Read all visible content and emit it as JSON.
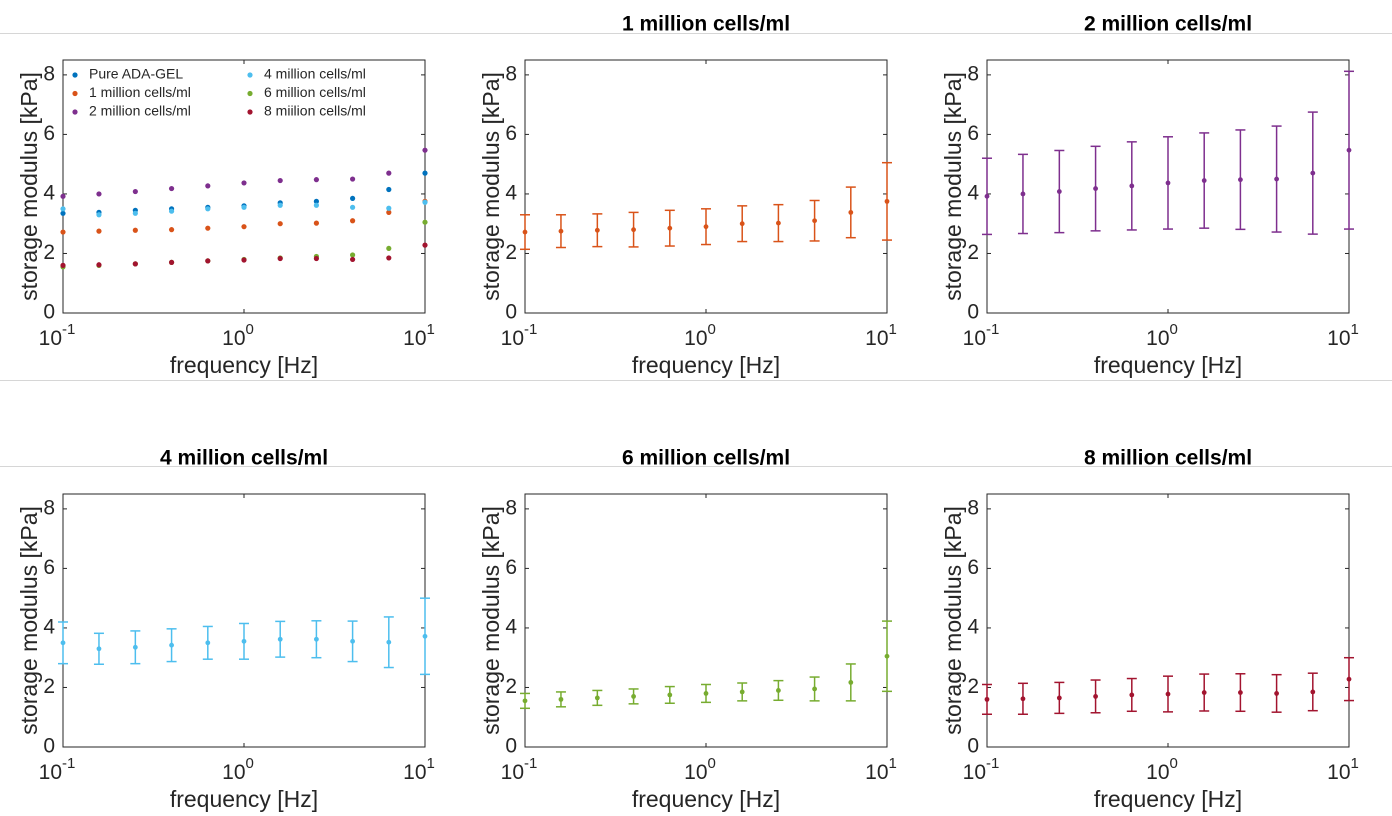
{
  "chart_data": [
    {
      "type": "scatter",
      "xlabel": "frequency [Hz]",
      "ylabel": "storage modulus [kPa]",
      "xscale": "log",
      "legend": "upper-left",
      "x": [
        0.1,
        0.158,
        0.251,
        0.398,
        0.631,
        1,
        1.585,
        2.512,
        3.981,
        6.31,
        10
      ],
      "series": [
        {
          "name": "Pure ADA-GEL",
          "color": "#0072BD",
          "values": [
            3.35,
            3.38,
            3.45,
            3.5,
            3.55,
            3.6,
            3.7,
            3.75,
            3.85,
            4.15,
            4.7
          ]
        },
        {
          "name": "1 million cells/ml",
          "color": "#D95319",
          "values": [
            2.72,
            2.75,
            2.78,
            2.8,
            2.85,
            2.9,
            3.0,
            3.02,
            3.1,
            3.38,
            3.75
          ]
        },
        {
          "name": "2 million cells/ml",
          "color": "#7E2F8E",
          "values": [
            3.92,
            4.0,
            4.08,
            4.18,
            4.27,
            4.37,
            4.45,
            4.48,
            4.5,
            4.7,
            5.47
          ]
        },
        {
          "name": "4 million cells/ml",
          "color": "#4DBEEE",
          "values": [
            3.5,
            3.3,
            3.35,
            3.42,
            3.5,
            3.55,
            3.62,
            3.62,
            3.55,
            3.52,
            3.72
          ]
        },
        {
          "name": "6 million cells/ml",
          "color": "#77AC30",
          "values": [
            1.55,
            1.6,
            1.65,
            1.7,
            1.75,
            1.8,
            1.85,
            1.9,
            1.95,
            2.17,
            3.05
          ]
        },
        {
          "name": "8 miilion cells/ml",
          "color": "#A2142F",
          "values": [
            1.6,
            1.62,
            1.65,
            1.7,
            1.75,
            1.78,
            1.83,
            1.83,
            1.8,
            1.85,
            2.28
          ]
        }
      ],
      "xlim": [
        0.1,
        10
      ],
      "xticks": [
        {
          "value": 0.1,
          "label": "10",
          "exponent": "-1"
        },
        {
          "value": 1,
          "label": "10",
          "exponent": "0"
        },
        {
          "value": 10,
          "label": "10",
          "exponent": "1"
        }
      ],
      "ylim": [
        0,
        8.5
      ],
      "yticks": [
        0,
        2,
        4,
        6,
        8
      ]
    },
    {
      "type": "errorbar",
      "title": "1 million cells/ml",
      "xlabel": "frequency [Hz]",
      "ylabel": "storage modulus [kPa]",
      "xscale": "log",
      "x": [
        0.1,
        0.158,
        0.251,
        0.398,
        0.631,
        1,
        1.585,
        2.512,
        3.981,
        6.31,
        10
      ],
      "series": [
        {
          "color": "#D95319",
          "values": [
            2.72,
            2.75,
            2.78,
            2.8,
            2.85,
            2.9,
            3.0,
            3.02,
            3.1,
            3.38,
            3.75
          ],
          "errors": [
            0.58,
            0.55,
            0.55,
            0.58,
            0.6,
            0.6,
            0.6,
            0.62,
            0.68,
            0.85,
            1.3
          ]
        }
      ],
      "xlim": [
        0.1,
        10
      ],
      "xticks": [
        {
          "value": 0.1,
          "label": "10",
          "exponent": "-1"
        },
        {
          "value": 1,
          "label": "10",
          "exponent": "0"
        },
        {
          "value": 10,
          "label": "10",
          "exponent": "1"
        }
      ],
      "ylim": [
        0,
        8.5
      ],
      "yticks": [
        0,
        2,
        4,
        6,
        8
      ]
    },
    {
      "type": "errorbar",
      "title": "2 million cells/ml",
      "xlabel": "frequency [Hz]",
      "ylabel": "storage modulus [kPa]",
      "xscale": "log",
      "x": [
        0.1,
        0.158,
        0.251,
        0.398,
        0.631,
        1,
        1.585,
        2.512,
        3.981,
        6.31,
        10
      ],
      "series": [
        {
          "color": "#7E2F8E",
          "values": [
            3.92,
            4.0,
            4.08,
            4.18,
            4.27,
            4.37,
            4.45,
            4.48,
            4.5,
            4.7,
            5.47
          ],
          "errors": [
            1.28,
            1.33,
            1.38,
            1.42,
            1.48,
            1.55,
            1.6,
            1.67,
            1.78,
            2.05,
            2.65
          ]
        }
      ],
      "xlim": [
        0.1,
        10
      ],
      "xticks": [
        {
          "value": 0.1,
          "label": "10",
          "exponent": "-1"
        },
        {
          "value": 1,
          "label": "10",
          "exponent": "0"
        },
        {
          "value": 10,
          "label": "10",
          "exponent": "1"
        }
      ],
      "ylim": [
        0,
        8.5
      ],
      "yticks": [
        0,
        2,
        4,
        6,
        8
      ]
    },
    {
      "type": "errorbar",
      "title": "4 million cells/ml",
      "xlabel": "frequency [Hz]",
      "ylabel": "storage modulus [kPa]",
      "xscale": "log",
      "x": [
        0.1,
        0.158,
        0.251,
        0.398,
        0.631,
        1,
        1.585,
        2.512,
        3.981,
        6.31,
        10
      ],
      "series": [
        {
          "color": "#4DBEEE",
          "values": [
            3.5,
            3.3,
            3.35,
            3.42,
            3.5,
            3.55,
            3.62,
            3.62,
            3.55,
            3.52,
            3.72
          ],
          "errors": [
            0.7,
            0.52,
            0.55,
            0.55,
            0.55,
            0.6,
            0.6,
            0.62,
            0.68,
            0.85,
            1.28
          ]
        }
      ],
      "xlim": [
        0.1,
        10
      ],
      "xticks": [
        {
          "value": 0.1,
          "label": "10",
          "exponent": "-1"
        },
        {
          "value": 1,
          "label": "10",
          "exponent": "0"
        },
        {
          "value": 10,
          "label": "10",
          "exponent": "1"
        }
      ],
      "ylim": [
        0,
        8.5
      ],
      "yticks": [
        0,
        2,
        4,
        6,
        8
      ]
    },
    {
      "type": "errorbar",
      "title": "6 million cells/ml",
      "xlabel": "frequency [Hz]",
      "ylabel": "storage modulus [kPa]",
      "xscale": "log",
      "x": [
        0.1,
        0.158,
        0.251,
        0.398,
        0.631,
        1,
        1.585,
        2.512,
        3.981,
        6.31,
        10
      ],
      "series": [
        {
          "color": "#77AC30",
          "values": [
            1.55,
            1.6,
            1.65,
            1.7,
            1.75,
            1.8,
            1.85,
            1.9,
            1.95,
            2.17,
            3.05
          ],
          "errors": [
            0.25,
            0.25,
            0.25,
            0.25,
            0.28,
            0.3,
            0.3,
            0.33,
            0.4,
            0.62,
            1.18
          ]
        }
      ],
      "xlim": [
        0.1,
        10
      ],
      "xticks": [
        {
          "value": 0.1,
          "label": "10",
          "exponent": "-1"
        },
        {
          "value": 1,
          "label": "10",
          "exponent": "0"
        },
        {
          "value": 10,
          "label": "10",
          "exponent": "1"
        }
      ],
      "ylim": [
        0,
        8.5
      ],
      "yticks": [
        0,
        2,
        4,
        6,
        8
      ]
    },
    {
      "type": "errorbar",
      "title": "8 million cells/ml",
      "xlabel": "frequency [Hz]",
      "ylabel": "storage modulus [kPa]",
      "xscale": "log",
      "x": [
        0.1,
        0.158,
        0.251,
        0.398,
        0.631,
        1,
        1.585,
        2.512,
        3.981,
        6.31,
        10
      ],
      "series": [
        {
          "color": "#A2142F",
          "values": [
            1.6,
            1.62,
            1.65,
            1.7,
            1.75,
            1.78,
            1.83,
            1.83,
            1.8,
            1.85,
            2.28
          ],
          "errors": [
            0.5,
            0.52,
            0.52,
            0.55,
            0.55,
            0.6,
            0.62,
            0.63,
            0.63,
            0.63,
            0.72
          ]
        }
      ],
      "xlim": [
        0.1,
        10
      ],
      "xticks": [
        {
          "value": 0.1,
          "label": "10",
          "exponent": "-1"
        },
        {
          "value": 1,
          "label": "10",
          "exponent": "0"
        },
        {
          "value": 10,
          "label": "10",
          "exponent": "1"
        }
      ],
      "ylim": [
        0,
        8.5
      ],
      "yticks": [
        0,
        2,
        4,
        6,
        8
      ]
    }
  ]
}
